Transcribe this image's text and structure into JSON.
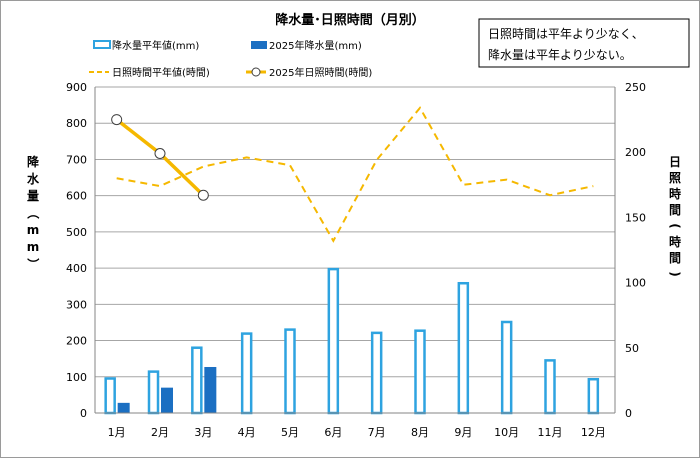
{
  "chart_data": {
    "type": "bar+line",
    "title": "降水量･日照時間（月別）",
    "annotation": [
      "日照時間は平年より少なく、",
      "降水量は平年より少ない。"
    ],
    "categories": [
      "1月",
      "2月",
      "3月",
      "4月",
      "5月",
      "6月",
      "7月",
      "8月",
      "9月",
      "10月",
      "11月",
      "12月"
    ],
    "ylabel_left": "降水量（mm）",
    "ylabel_right": "日照時間(時間)",
    "ylim_left": [
      0,
      900
    ],
    "yticks_left": [
      "0",
      "100",
      "200",
      "300",
      "400",
      "500",
      "600",
      "700",
      "800",
      "900"
    ],
    "ylim_right": [
      0,
      250
    ],
    "yticks_right": [
      "0",
      "50",
      "100",
      "150",
      "200",
      "250"
    ],
    "grid": true,
    "legend_position": "top",
    "series": [
      {
        "name": "降水量平年値(mm)",
        "type": "bar",
        "axis": "left",
        "style": "outline",
        "color": "#2ea3e0",
        "values": [
          98,
          117,
          183,
          222,
          233,
          400,
          224,
          230,
          361,
          254,
          148,
          96
        ]
      },
      {
        "name": "2025年降水量(mm)",
        "type": "bar",
        "axis": "left",
        "style": "filled",
        "color": "#1b6fc2",
        "values": [
          28,
          70,
          127,
          null,
          null,
          null,
          null,
          null,
          null,
          null,
          null,
          null
        ]
      },
      {
        "name": "日照時間平年値(時間)",
        "type": "line",
        "axis": "right",
        "style": "dashed",
        "color": "#f5b800",
        "values": [
          180,
          174,
          189,
          196,
          190,
          132,
          194,
          234,
          175,
          179,
          167,
          174
        ]
      },
      {
        "name": "2025年日照時間(時間)",
        "type": "line",
        "axis": "right",
        "style": "solid-marker",
        "color": "#f5b800",
        "values": [
          225,
          199,
          167,
          null,
          null,
          null,
          null,
          null,
          null,
          null,
          null,
          null
        ]
      }
    ]
  }
}
